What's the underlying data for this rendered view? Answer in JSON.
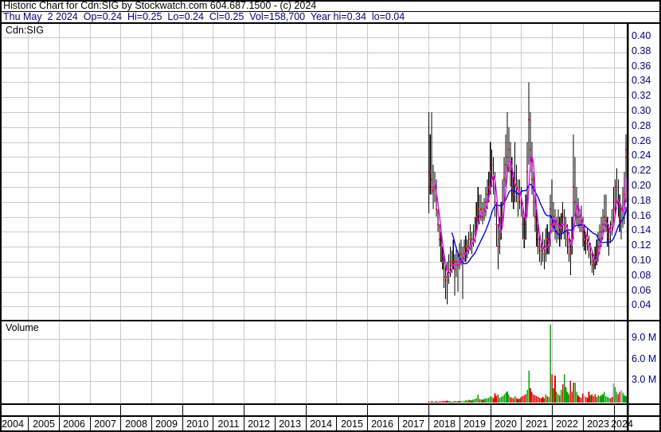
{
  "header": {
    "line1": "Historic Chart for Cdn:SIG by Stockwatch.com 604.687.1500 - (c) 2024",
    "line2": "Thu May  2 2024  Op=0.24  Hi=0.25  Lo=0.24  Cl=0.25  Vol=158,700  Year hi=0.34  lo=0.04"
  },
  "price_pane": {
    "label": "Cdn:SIG",
    "axis_ticks": [
      "0.40",
      "0.38",
      "0.36",
      "0.34",
      "0.32",
      "0.30",
      "0.28",
      "0.26",
      "0.24",
      "0.22",
      "0.20",
      "0.18",
      "0.16",
      "0.14",
      "0.12",
      "0.10",
      "0.08",
      "0.06",
      "0.04"
    ]
  },
  "volume_pane": {
    "label": "Volume",
    "axis_ticks": [
      "9.0 M",
      "6.0 M",
      "3.0 M"
    ]
  },
  "x_axis": {
    "years": [
      "2004",
      "2005",
      "2006",
      "2007",
      "2008",
      "2009",
      "2010",
      "2011",
      "2012",
      "2013",
      "2014",
      "2015",
      "2016",
      "2017",
      "2018",
      "2019",
      "2020",
      "2021",
      "2022",
      "2023",
      "2024"
    ]
  },
  "colors": {
    "grid": "#c8c8c8",
    "border": "#000000",
    "bar": "#000000",
    "close_dot": "#ff0000",
    "ma_fast": "#ff00ff",
    "ma_slow": "#0000ff",
    "vol_up": "#00a800",
    "vol_down": "#ee0000",
    "vol_neutral": "#aaaaaa",
    "axis_text": "#000080",
    "year_text": "#000000"
  },
  "chart_data": {
    "type": "ohlc",
    "title": "Cdn:SIG historic chart with volume",
    "x_axis_years": [
      2004,
      2024
    ],
    "price_axis": {
      "min": 0.04,
      "max": 0.4,
      "step": 0.02
    },
    "volume_axis_M": [
      3.0,
      6.0,
      9.0
    ],
    "series_start_year": 2018.0,
    "series_step_years": 0.05,
    "ma_fast_window": 4,
    "ma_slow_window": 16,
    "close": [
      0.2,
      0.22,
      0.21,
      0.195,
      0.2,
      0.17,
      0.15,
      0.13,
      0.12,
      0.1,
      0.09,
      0.08,
      0.075,
      0.09,
      0.1,
      0.095,
      0.1,
      0.09,
      0.1,
      0.095,
      0.1,
      0.11,
      0.105,
      0.11,
      0.12,
      0.115,
      0.12,
      0.13,
      0.125,
      0.13,
      0.14,
      0.16,
      0.17,
      0.16,
      0.17,
      0.16,
      0.17,
      0.18,
      0.19,
      0.2,
      0.22,
      0.23,
      0.21,
      0.18,
      0.15,
      0.12,
      0.13,
      0.16,
      0.18,
      0.21,
      0.23,
      0.24,
      0.25,
      0.22,
      0.2,
      0.19,
      0.21,
      0.2,
      0.18,
      0.19,
      0.18,
      0.15,
      0.13,
      0.16,
      0.22,
      0.29,
      0.25,
      0.21,
      0.18,
      0.16,
      0.14,
      0.13,
      0.12,
      0.115,
      0.12,
      0.11,
      0.12,
      0.13,
      0.125,
      0.17,
      0.15,
      0.16,
      0.15,
      0.14,
      0.15,
      0.14,
      0.15,
      0.16,
      0.15,
      0.14,
      0.13,
      0.12,
      0.11,
      0.13,
      0.2,
      0.18,
      0.17,
      0.16,
      0.15,
      0.155,
      0.14,
      0.13,
      0.125,
      0.13,
      0.12,
      0.11,
      0.1,
      0.095,
      0.1,
      0.11,
      0.12,
      0.13,
      0.14,
      0.15,
      0.16,
      0.155,
      0.14,
      0.13,
      0.14,
      0.15,
      0.17,
      0.18,
      0.2,
      0.18,
      0.16,
      0.155,
      0.17,
      0.19,
      0.24,
      0.25
    ],
    "high": [
      0.3,
      0.27,
      0.3,
      0.23,
      0.22,
      0.21,
      0.17,
      0.15,
      0.14,
      0.12,
      0.11,
      0.1,
      0.1,
      0.11,
      0.12,
      0.115,
      0.13,
      0.11,
      0.12,
      0.11,
      0.125,
      0.13,
      0.12,
      0.13,
      0.135,
      0.13,
      0.14,
      0.15,
      0.14,
      0.15,
      0.16,
      0.18,
      0.2,
      0.19,
      0.19,
      0.18,
      0.185,
      0.2,
      0.21,
      0.22,
      0.26,
      0.25,
      0.24,
      0.22,
      0.18,
      0.15,
      0.16,
      0.18,
      0.21,
      0.24,
      0.27,
      0.3,
      0.28,
      0.26,
      0.24,
      0.22,
      0.26,
      0.23,
      0.21,
      0.21,
      0.2,
      0.18,
      0.16,
      0.19,
      0.26,
      0.34,
      0.3,
      0.26,
      0.22,
      0.19,
      0.17,
      0.15,
      0.14,
      0.13,
      0.14,
      0.13,
      0.145,
      0.15,
      0.14,
      0.19,
      0.21,
      0.18,
      0.17,
      0.16,
      0.17,
      0.16,
      0.165,
      0.18,
      0.17,
      0.16,
      0.15,
      0.14,
      0.13,
      0.16,
      0.27,
      0.24,
      0.2,
      0.185,
      0.17,
      0.175,
      0.16,
      0.15,
      0.14,
      0.145,
      0.135,
      0.125,
      0.115,
      0.11,
      0.12,
      0.13,
      0.14,
      0.15,
      0.16,
      0.17,
      0.19,
      0.19,
      0.16,
      0.15,
      0.155,
      0.17,
      0.2,
      0.21,
      0.225,
      0.21,
      0.19,
      0.175,
      0.2,
      0.22,
      0.27,
      0.25
    ],
    "low": [
      0.165,
      0.19,
      0.19,
      0.17,
      0.18,
      0.16,
      0.14,
      0.12,
      0.1,
      0.09,
      0.065,
      0.05,
      0.043,
      0.07,
      0.08,
      0.085,
      0.09,
      0.055,
      0.08,
      0.06,
      0.09,
      0.095,
      0.05,
      0.1,
      0.1,
      0.105,
      0.11,
      0.115,
      0.11,
      0.12,
      0.125,
      0.14,
      0.15,
      0.15,
      0.155,
      0.15,
      0.155,
      0.16,
      0.17,
      0.18,
      0.19,
      0.2,
      0.19,
      0.16,
      0.12,
      0.09,
      0.11,
      0.13,
      0.15,
      0.18,
      0.2,
      0.22,
      0.22,
      0.2,
      0.18,
      0.17,
      0.18,
      0.18,
      0.16,
      0.17,
      0.16,
      0.13,
      0.118,
      0.13,
      0.16,
      0.23,
      0.22,
      0.19,
      0.16,
      0.14,
      0.12,
      0.11,
      0.1,
      0.095,
      0.1,
      0.09,
      0.1,
      0.11,
      0.11,
      0.12,
      0.14,
      0.14,
      0.13,
      0.125,
      0.13,
      0.12,
      0.13,
      0.14,
      0.13,
      0.12,
      0.11,
      0.1,
      0.082,
      0.11,
      0.13,
      0.16,
      0.15,
      0.145,
      0.14,
      0.14,
      0.12,
      0.115,
      0.11,
      0.115,
      0.105,
      0.095,
      0.085,
      0.082,
      0.09,
      0.095,
      0.1,
      0.11,
      0.12,
      0.13,
      0.14,
      0.14,
      0.12,
      0.108,
      0.125,
      0.135,
      0.15,
      0.16,
      0.17,
      0.16,
      0.14,
      0.13,
      0.145,
      0.15,
      0.18,
      0.24
    ],
    "volume_M": [
      0.15,
      0.12,
      0.2,
      0.1,
      0.08,
      0.15,
      0.12,
      0.18,
      0.15,
      0.2,
      0.25,
      0.2,
      0.3,
      0.15,
      0.2,
      0.12,
      0.18,
      0.25,
      0.15,
      0.2,
      0.25,
      0.2,
      0.3,
      0.25,
      0.35,
      0.3,
      0.4,
      0.35,
      0.3,
      0.45,
      0.5,
      0.6,
      1.1,
      0.5,
      0.45,
      0.4,
      0.5,
      0.55,
      0.6,
      0.7,
      0.9,
      0.8,
      0.6,
      1.3,
      0.9,
      1.1,
      0.7,
      0.8,
      0.9,
      1.2,
      1.4,
      1.6,
      1.1,
      0.8,
      0.7,
      0.6,
      0.9,
      0.6,
      0.5,
      0.55,
      0.8,
      0.9,
      1.0,
      1.2,
      1.8,
      4.5,
      2.0,
      1.5,
      1.2,
      1.0,
      0.9,
      0.8,
      0.7,
      0.6,
      0.8,
      0.6,
      1.2,
      0.9,
      0.8,
      11.0,
      4.0,
      2.0,
      3.8,
      1.5,
      1.2,
      1.0,
      1.8,
      2.6,
      4.0,
      2.2,
      1.5,
      1.2,
      3.1,
      1.5,
      2.8,
      2.8,
      1.5,
      1.0,
      0.8,
      0.7,
      1.3,
      1.0,
      0.8,
      0.7,
      1.5,
      1.0,
      1.2,
      0.9,
      1.2,
      0.8,
      1.0,
      0.9,
      1.0,
      1.2,
      1.5,
      0.9,
      0.8,
      0.7,
      0.6,
      0.8,
      2.7,
      2.2,
      1.5,
      1.2,
      1.5,
      1.8,
      1.4,
      1.0,
      0.9,
      0.16
    ],
    "volume_dir": "duddudddddddduudududuunuuduuduuuududuuuuuudddduuuuuuuddduddudddduudddddddddduduududuududuuuuddduuddddndddudddduuuuuuuuddnuuddnuuuuuuud"
  }
}
